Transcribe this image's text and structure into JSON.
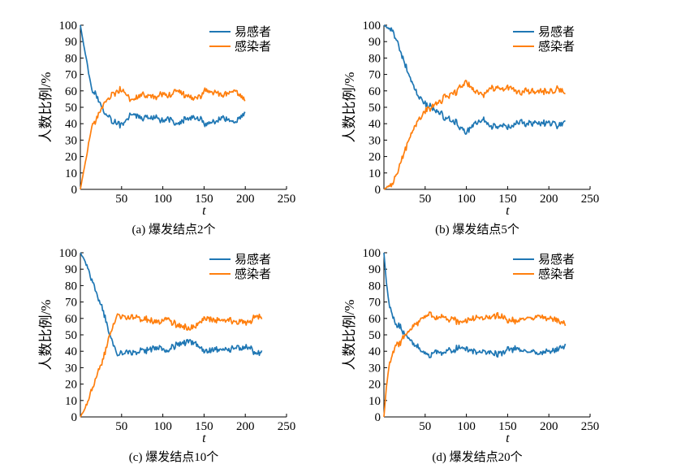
{
  "colors": {
    "susceptible": "#1f77b4",
    "infected": "#ff7f0e"
  },
  "chart_data": [
    {
      "type": "line",
      "caption": "(a) 爆发结点2个",
      "xlabel": "t",
      "ylabel": "人数比例/%",
      "xlim": [
        0,
        250
      ],
      "ylim": [
        0,
        100
      ],
      "xticks": [
        50,
        100,
        150,
        200,
        250
      ],
      "yticks": [
        0,
        10,
        20,
        30,
        40,
        50,
        60,
        70,
        80,
        90,
        100
      ],
      "legend_position": "top-right",
      "series": [
        {
          "name": "易感者",
          "color": "#1f77b4",
          "x": [
            0,
            5,
            10,
            15,
            20,
            25,
            30,
            35,
            40,
            45,
            50,
            55,
            60,
            70,
            80,
            90,
            100,
            110,
            120,
            130,
            140,
            150,
            160,
            170,
            180,
            190,
            200
          ],
          "y": [
            100,
            86,
            72,
            62,
            57,
            51,
            46,
            44,
            41,
            40,
            38,
            40,
            46,
            44,
            43,
            42,
            41,
            42,
            40,
            43,
            44,
            39,
            40,
            42,
            41,
            40,
            44
          ]
        },
        {
          "name": "感染者",
          "color": "#ff7f0e",
          "x": [
            0,
            5,
            10,
            15,
            20,
            25,
            30,
            35,
            40,
            45,
            50,
            55,
            60,
            70,
            80,
            90,
            100,
            110,
            120,
            130,
            140,
            150,
            160,
            170,
            180,
            190,
            200
          ],
          "y": [
            0,
            13,
            27,
            37,
            43,
            49,
            53,
            56,
            58,
            60,
            62,
            60,
            54,
            57,
            58,
            58,
            59,
            58,
            60,
            57,
            55,
            61,
            60,
            59,
            60,
            61,
            57
          ]
        }
      ]
    },
    {
      "type": "line",
      "caption": "(b) 爆发结点5个",
      "xlabel": "t",
      "ylabel": "人数比例/%",
      "xlim": [
        0,
        250
      ],
      "ylim": [
        0,
        100
      ],
      "xticks": [
        50,
        100,
        150,
        200,
        250
      ],
      "yticks": [
        0,
        10,
        20,
        30,
        40,
        50,
        60,
        70,
        80,
        90,
        100
      ],
      "legend_position": "top-right",
      "series": [
        {
          "name": "易感者",
          "color": "#1f77b4",
          "x": [
            0,
            5,
            10,
            15,
            20,
            25,
            30,
            35,
            40,
            45,
            50,
            55,
            60,
            70,
            80,
            90,
            100,
            110,
            120,
            130,
            140,
            150,
            160,
            170,
            180,
            190,
            200,
            210,
            220
          ],
          "y": [
            100,
            98,
            96,
            92,
            85,
            76,
            68,
            62,
            57,
            54,
            52,
            50,
            48,
            45,
            42,
            40,
            34,
            40,
            42,
            40,
            40,
            39,
            40,
            40,
            39,
            41,
            40,
            38,
            42
          ]
        },
        {
          "name": "感染者",
          "color": "#ff7f0e",
          "x": [
            0,
            5,
            10,
            15,
            20,
            25,
            30,
            35,
            40,
            45,
            50,
            55,
            60,
            70,
            80,
            90,
            100,
            110,
            120,
            130,
            140,
            150,
            160,
            170,
            180,
            190,
            200,
            210,
            220
          ],
          "y": [
            0,
            2,
            4,
            8,
            15,
            24,
            32,
            38,
            42,
            45,
            48,
            50,
            52,
            55,
            58,
            60,
            66,
            60,
            58,
            60,
            60,
            61,
            60,
            60,
            61,
            59,
            60,
            62,
            58
          ]
        }
      ]
    },
    {
      "type": "line",
      "caption": "(c) 爆发结点10个",
      "xlabel": "t",
      "ylabel": "人数比例/%",
      "xlim": [
        0,
        250
      ],
      "ylim": [
        0,
        100
      ],
      "xticks": [
        50,
        100,
        150,
        200,
        250
      ],
      "yticks": [
        0,
        10,
        20,
        30,
        40,
        50,
        60,
        70,
        80,
        90,
        100
      ],
      "legend_position": "top-right",
      "series": [
        {
          "name": "易感者",
          "color": "#1f77b4",
          "x": [
            0,
            5,
            10,
            15,
            20,
            25,
            30,
            35,
            40,
            45,
            50,
            60,
            70,
            80,
            90,
            100,
            110,
            120,
            130,
            140,
            150,
            160,
            170,
            180,
            190,
            200,
            210,
            220
          ],
          "y": [
            100,
            96,
            90,
            82,
            75,
            68,
            60,
            52,
            44,
            37,
            38,
            40,
            40,
            40,
            41,
            42,
            43,
            44,
            46,
            44,
            40,
            41,
            41,
            42,
            42,
            42,
            40,
            40
          ]
        },
        {
          "name": "感染者",
          "color": "#ff7f0e",
          "x": [
            0,
            5,
            10,
            15,
            20,
            25,
            30,
            35,
            40,
            45,
            50,
            60,
            70,
            80,
            90,
            100,
            110,
            120,
            130,
            140,
            150,
            160,
            170,
            180,
            190,
            200,
            210,
            220
          ],
          "y": [
            0,
            4,
            10,
            18,
            25,
            32,
            40,
            48,
            56,
            63,
            62,
            60,
            60,
            60,
            59,
            58,
            57,
            56,
            54,
            56,
            60,
            59,
            59,
            58,
            58,
            58,
            60,
            60
          ]
        }
      ]
    },
    {
      "type": "line",
      "caption": "(d) 爆发结点20个",
      "xlabel": "t",
      "ylabel": "人数比例/%",
      "xlim": [
        0,
        250
      ],
      "ylim": [
        0,
        100
      ],
      "xticks": [
        50,
        100,
        150,
        200,
        250
      ],
      "yticks": [
        0,
        10,
        20,
        30,
        40,
        50,
        60,
        70,
        80,
        90,
        100
      ],
      "legend_position": "top-right",
      "series": [
        {
          "name": "易感者",
          "color": "#1f77b4",
          "x": [
            0,
            3,
            6,
            10,
            15,
            20,
            25,
            30,
            35,
            40,
            45,
            50,
            55,
            60,
            70,
            80,
            90,
            100,
            110,
            120,
            130,
            140,
            150,
            160,
            170,
            180,
            190,
            200,
            210,
            220
          ],
          "y": [
            100,
            82,
            70,
            62,
            58,
            56,
            52,
            50,
            46,
            42,
            40,
            37,
            36,
            36,
            38,
            40,
            42,
            41,
            40,
            38,
            38,
            40,
            41,
            42,
            40,
            39,
            38,
            40,
            41,
            43
          ]
        },
        {
          "name": "感染者",
          "color": "#ff7f0e",
          "x": [
            0,
            3,
            6,
            10,
            15,
            20,
            25,
            30,
            35,
            40,
            45,
            50,
            55,
            60,
            70,
            80,
            90,
            100,
            110,
            120,
            130,
            140,
            150,
            160,
            170,
            180,
            190,
            200,
            210,
            220
          ],
          "y": [
            0,
            18,
            30,
            38,
            42,
            44,
            48,
            50,
            54,
            58,
            60,
            63,
            64,
            64,
            62,
            60,
            58,
            59,
            60,
            62,
            62,
            60,
            59,
            58,
            60,
            61,
            62,
            60,
            59,
            57
          ]
        }
      ]
    }
  ]
}
